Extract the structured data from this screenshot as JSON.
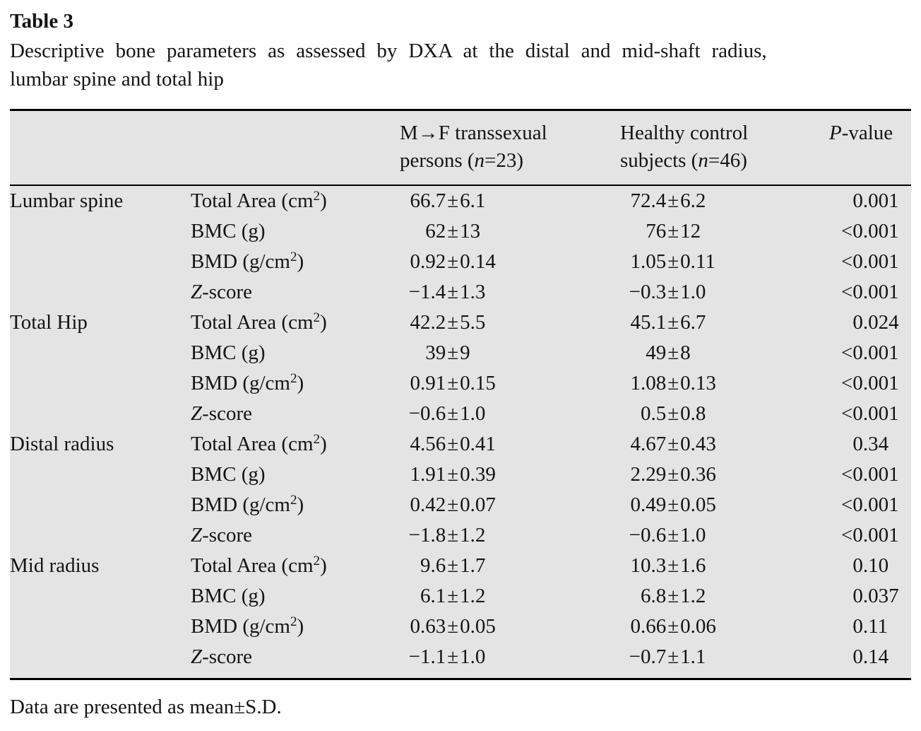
{
  "title": "Table 3",
  "caption": "Descriptive bone parameters as assessed by DXA at the distal and mid-shaft radius,\nlumbar spine and total hip",
  "footnote": "Data are presented as mean±S.D.",
  "colors": {
    "page_background": "#ffffff",
    "table_background": "#e4e4e4",
    "rule": "#000000",
    "text": "#141414"
  },
  "table": {
    "headers": {
      "group": "",
      "parameter": "",
      "transsexual": "M→F transsexual\npersons (n=23)",
      "control": "Healthy control\nsubjects (n=46)",
      "pvalue": "P-value"
    },
    "rows": [
      {
        "group": "Lumbar spine",
        "parameter": "Total Area (cm²)",
        "mf": "66.7±6.1",
        "control": "72.4±6.2",
        "p": "0.001"
      },
      {
        "group": "",
        "parameter": "BMC (g)",
        "mf": "62±13",
        "control": "76±12",
        "p": "<0.001"
      },
      {
        "group": "",
        "parameter": "BMD (g/cm²)",
        "mf": "0.92±0.14",
        "control": "1.05±0.11",
        "p": "<0.001"
      },
      {
        "group": "",
        "parameter": "Z-score",
        "mf": "−1.4±1.3",
        "control": "−0.3±1.0",
        "p": "<0.001"
      },
      {
        "group": "Total Hip",
        "parameter": "Total Area (cm²)",
        "mf": "42.2±5.5",
        "control": "45.1±6.7",
        "p": "0.024"
      },
      {
        "group": "",
        "parameter": "BMC (g)",
        "mf": "39±9",
        "control": "49±8",
        "p": "<0.001"
      },
      {
        "group": "",
        "parameter": "BMD (g/cm²)",
        "mf": "0.91±0.15",
        "control": "1.08±0.13",
        "p": "<0.001"
      },
      {
        "group": "",
        "parameter": "Z-score",
        "mf": "−0.6±1.0",
        "control": "0.5±0.8",
        "p": "<0.001"
      },
      {
        "group": "Distal radius",
        "parameter": "Total Area (cm²)",
        "mf": "4.56±0.41",
        "control": "4.67±0.43",
        "p": "0.34"
      },
      {
        "group": "",
        "parameter": "BMC (g)",
        "mf": "1.91±0.39",
        "control": "2.29±0.36",
        "p": "<0.001"
      },
      {
        "group": "",
        "parameter": "BMD (g/cm²)",
        "mf": "0.42±0.07",
        "control": "0.49±0.05",
        "p": "<0.001"
      },
      {
        "group": "",
        "parameter": "Z-score",
        "mf": "−1.8±1.2",
        "control": "−0.6±1.0",
        "p": "<0.001"
      },
      {
        "group": "Mid radius",
        "parameter": "Total Area (cm²)",
        "mf": "9.6±1.7",
        "control": "10.3±1.6",
        "p": "0.10"
      },
      {
        "group": "",
        "parameter": "BMC (g)",
        "mf": "6.1±1.2",
        "control": "6.8±1.2",
        "p": "0.037"
      },
      {
        "group": "",
        "parameter": "BMD (g/cm²)",
        "mf": "0.63±0.05",
        "control": "0.66±0.06",
        "p": "0.11"
      },
      {
        "group": "",
        "parameter": "Z-score",
        "mf": "−1.1±1.0",
        "control": "−0.7±1.1",
        "p": "0.14"
      }
    ]
  }
}
